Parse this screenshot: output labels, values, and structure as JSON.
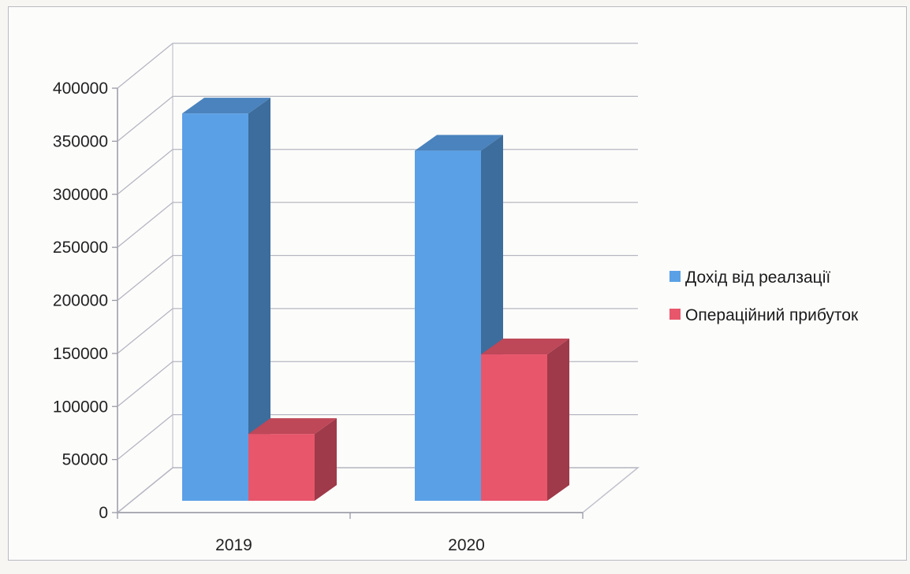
{
  "chart_data": {
    "type": "bar",
    "style": "3d-clustered-column",
    "categories": [
      "2019",
      "2020"
    ],
    "series": [
      {
        "name": "Дохід від реалзації",
        "values": [
          365000,
          330000
        ],
        "color": "#5aa0e6"
      },
      {
        "name": "Операційний прибуток",
        "values": [
          63000,
          138000
        ],
        "color": "#e8566b"
      }
    ],
    "ylim": [
      0,
      400000
    ],
    "yticks": [
      "0",
      "50000",
      "100000",
      "150000",
      "200000",
      "250000",
      "300000",
      "350000",
      "400000"
    ],
    "grid": true,
    "legend_position": "right",
    "title": "",
    "xlabel": "",
    "ylabel": ""
  }
}
